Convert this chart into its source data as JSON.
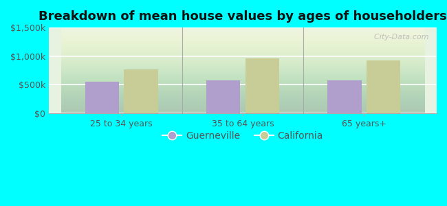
{
  "title": "Breakdown of mean house values by ages of householders",
  "categories": [
    "25 to 34 years",
    "35 to 64 years",
    "65 years+"
  ],
  "guerneville_values": [
    550000,
    570000,
    580000
  ],
  "california_values": [
    770000,
    960000,
    920000
  ],
  "guerneville_color": "#b09fcc",
  "california_color": "#c8cc96",
  "bar_width": 0.28,
  "ylim": [
    0,
    1500000
  ],
  "yticks": [
    0,
    500000,
    1000000,
    1500000
  ],
  "ytick_labels": [
    "$0",
    "$500k",
    "$1,000k",
    "$1,500k"
  ],
  "background_color": "#00ffff",
  "title_fontsize": 13,
  "tick_fontsize": 9,
  "legend_fontsize": 10,
  "watermark": "  City-Data.com",
  "legend_guerneville": "Guerneville",
  "legend_california": "California",
  "grid_color": "#dddddd",
  "spine_color": "#aaaaaa",
  "tick_color": "#555555",
  "divider_color": "#aaaaaa",
  "watermark_color": "#c0c0c0"
}
